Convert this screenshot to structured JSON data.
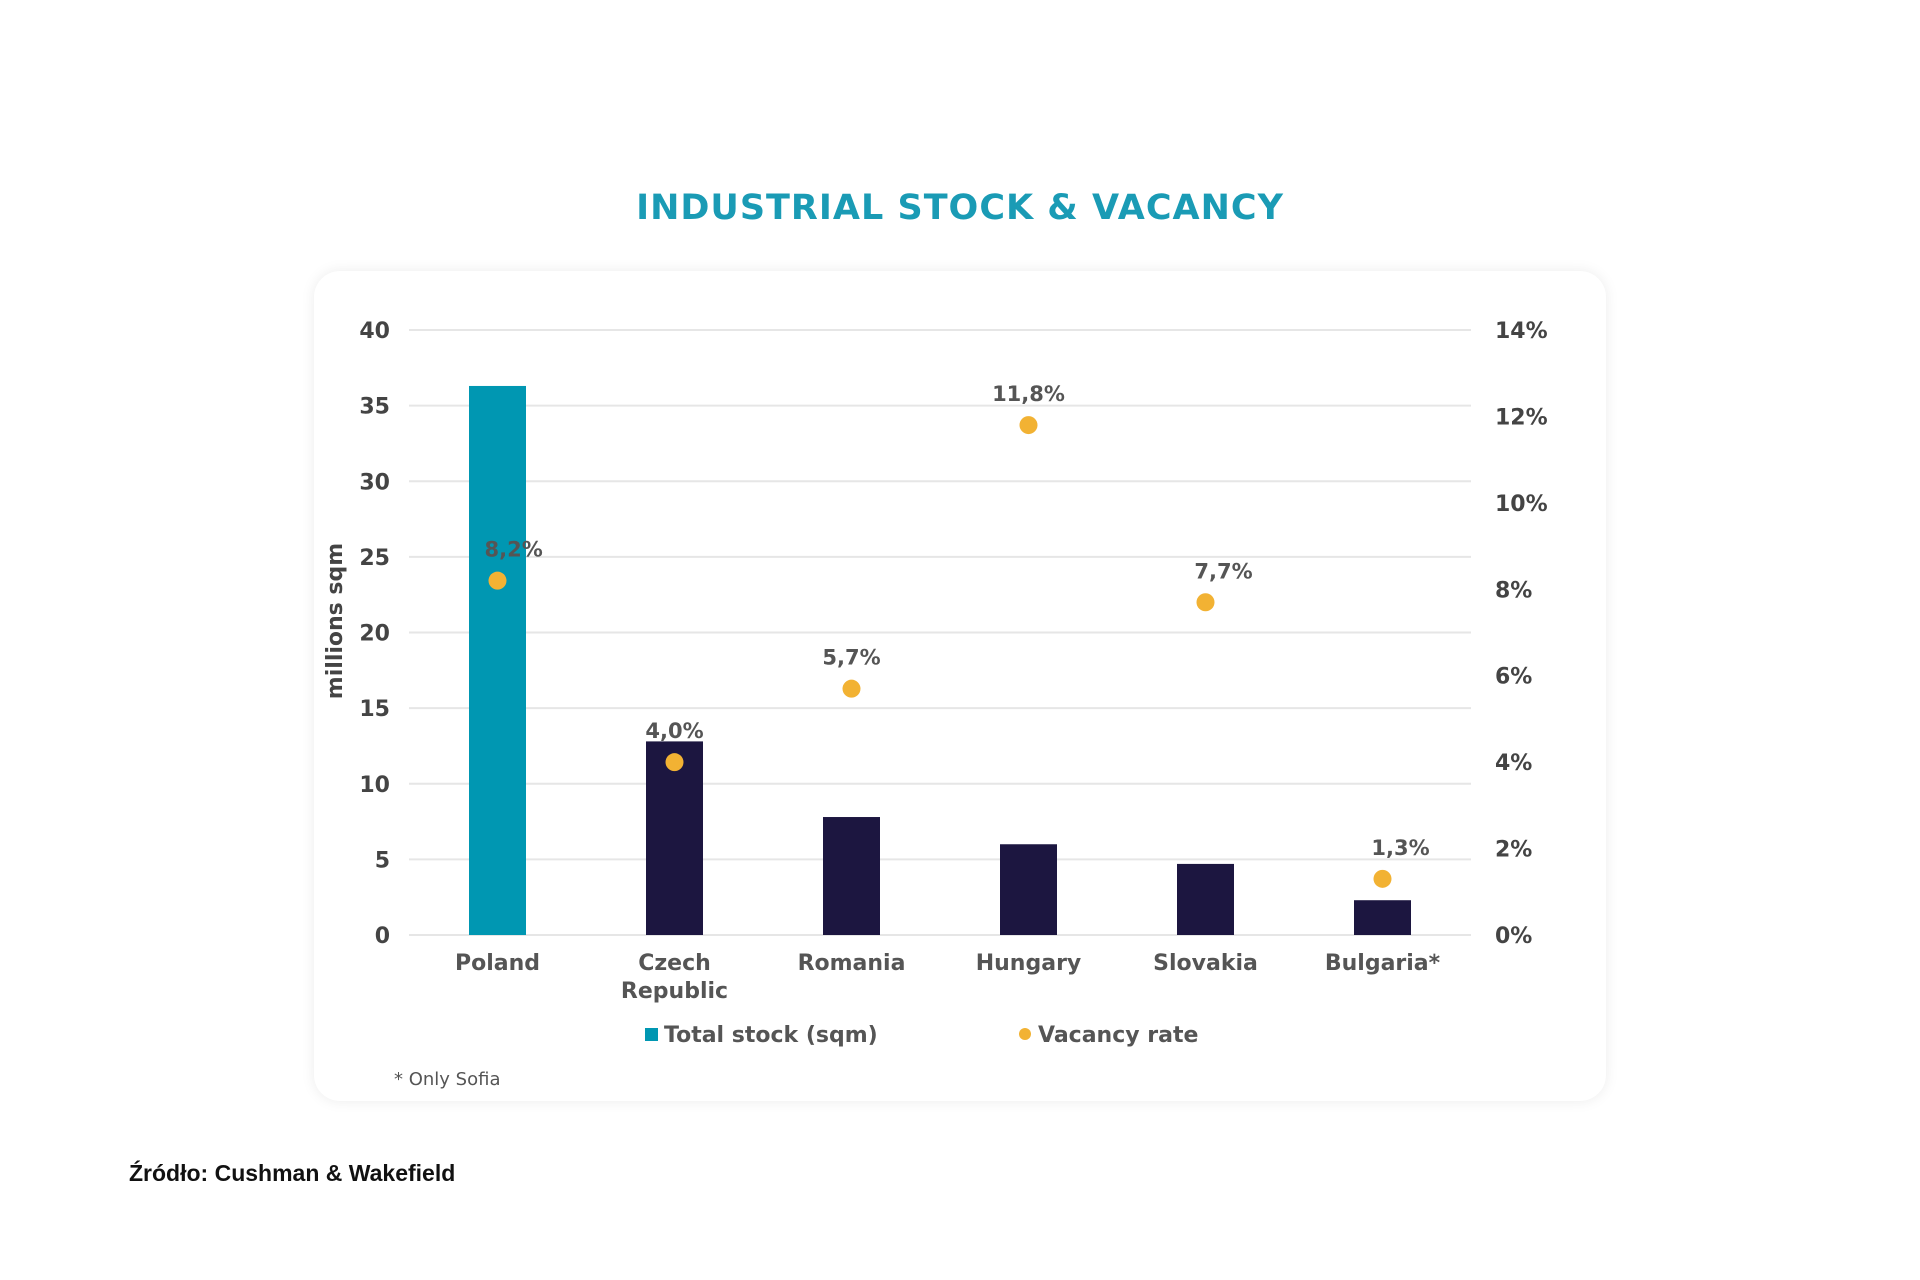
{
  "chart_data": {
    "type": "bar",
    "title": "INDUSTRIAL STOCK & VACANCY",
    "categories": [
      "Poland",
      "Czech Republic",
      "Romania",
      "Hungary",
      "Slovakia",
      "Bulgaria*"
    ],
    "series": [
      {
        "name": "Total stock (sqm)",
        "type": "bar",
        "axis": "left",
        "values": [
          36.3,
          12.8,
          7.8,
          6.0,
          4.7,
          2.3
        ],
        "colors": [
          "#0097b2",
          "#1c1640",
          "#1c1640",
          "#1c1640",
          "#1c1640",
          "#1c1640"
        ]
      },
      {
        "name": "Vacancy rate",
        "type": "scatter",
        "axis": "right",
        "values": [
          8.2,
          4.0,
          5.7,
          11.8,
          7.7,
          1.3
        ],
        "labels": [
          "8,2%",
          "4,0%",
          "5,7%",
          "11,8%",
          "7,7%",
          "1,3%"
        ],
        "color": "#f2b233"
      }
    ],
    "ylabel": "millions sqm",
    "ylim": [
      0,
      40
    ],
    "yticks": [
      "0",
      "5",
      "10",
      "15",
      "20",
      "25",
      "30",
      "35",
      "40"
    ],
    "y2lim": [
      0,
      14
    ],
    "y2ticks": [
      "0%",
      "2%",
      "4%",
      "6%",
      "8%",
      "10%",
      "12%",
      "14%"
    ],
    "grid": true,
    "legend": "bottom",
    "legend_entries": [
      "Total stock (sqm)",
      "Vacancy rate"
    ],
    "footnote": "* Only Sofia",
    "source": "Źródło: Cushman & Wakefield"
  }
}
